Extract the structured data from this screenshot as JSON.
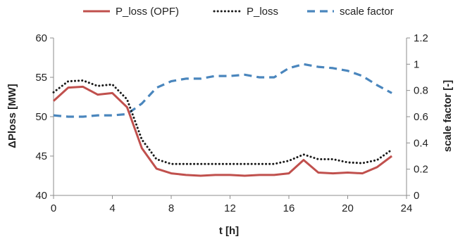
{
  "chart_data": {
    "type": "line",
    "xlabel": "t [h]",
    "ylabel": "ΔPloss [MW]",
    "y2label": "scale factor [-]",
    "xlim": [
      0,
      24
    ],
    "ylim": [
      40,
      60
    ],
    "y2lim": [
      0,
      1.2
    ],
    "xticks": [
      "0",
      "4",
      "8",
      "12",
      "16",
      "20",
      "24"
    ],
    "yticks": [
      "40",
      "45",
      "50",
      "55",
      "60"
    ],
    "y2ticks": [
      "0",
      "0.2",
      "0.4",
      "0.6",
      "0.8",
      "1",
      "1.2"
    ],
    "grid": false,
    "legend_position": "top",
    "x": [
      0,
      1,
      2,
      3,
      4,
      5,
      6,
      7,
      8,
      9,
      10,
      11,
      12,
      13,
      14,
      15,
      16,
      17,
      18,
      19,
      20,
      21,
      22,
      23
    ],
    "series": [
      {
        "name": "P_loss (OPF)",
        "axis": "left",
        "style": "solid",
        "color": "#c0504d",
        "values": [
          52.0,
          53.7,
          53.8,
          52.8,
          53.0,
          51.2,
          46.0,
          43.4,
          42.8,
          42.6,
          42.5,
          42.6,
          42.6,
          42.5,
          42.6,
          42.6,
          42.8,
          44.5,
          42.9,
          42.8,
          42.9,
          42.8,
          43.6,
          45.0
        ]
      },
      {
        "name": "P_loss",
        "axis": "left",
        "style": "dotted",
        "color": "#1a1a1a",
        "values": [
          53.1,
          54.5,
          54.6,
          53.9,
          54.1,
          52.2,
          47.1,
          44.6,
          44.0,
          44.0,
          44.0,
          44.0,
          44.0,
          44.0,
          44.0,
          44.0,
          44.4,
          45.2,
          44.6,
          44.6,
          44.2,
          44.1,
          44.5,
          45.8
        ]
      },
      {
        "name": "scale factor",
        "axis": "right",
        "style": "dashed",
        "color": "#4a86bd",
        "values": [
          0.61,
          0.6,
          0.6,
          0.61,
          0.61,
          0.62,
          0.7,
          0.82,
          0.87,
          0.89,
          0.89,
          0.91,
          0.91,
          0.92,
          0.9,
          0.9,
          0.97,
          1.0,
          0.98,
          0.97,
          0.95,
          0.91,
          0.84,
          0.78
        ]
      }
    ]
  }
}
